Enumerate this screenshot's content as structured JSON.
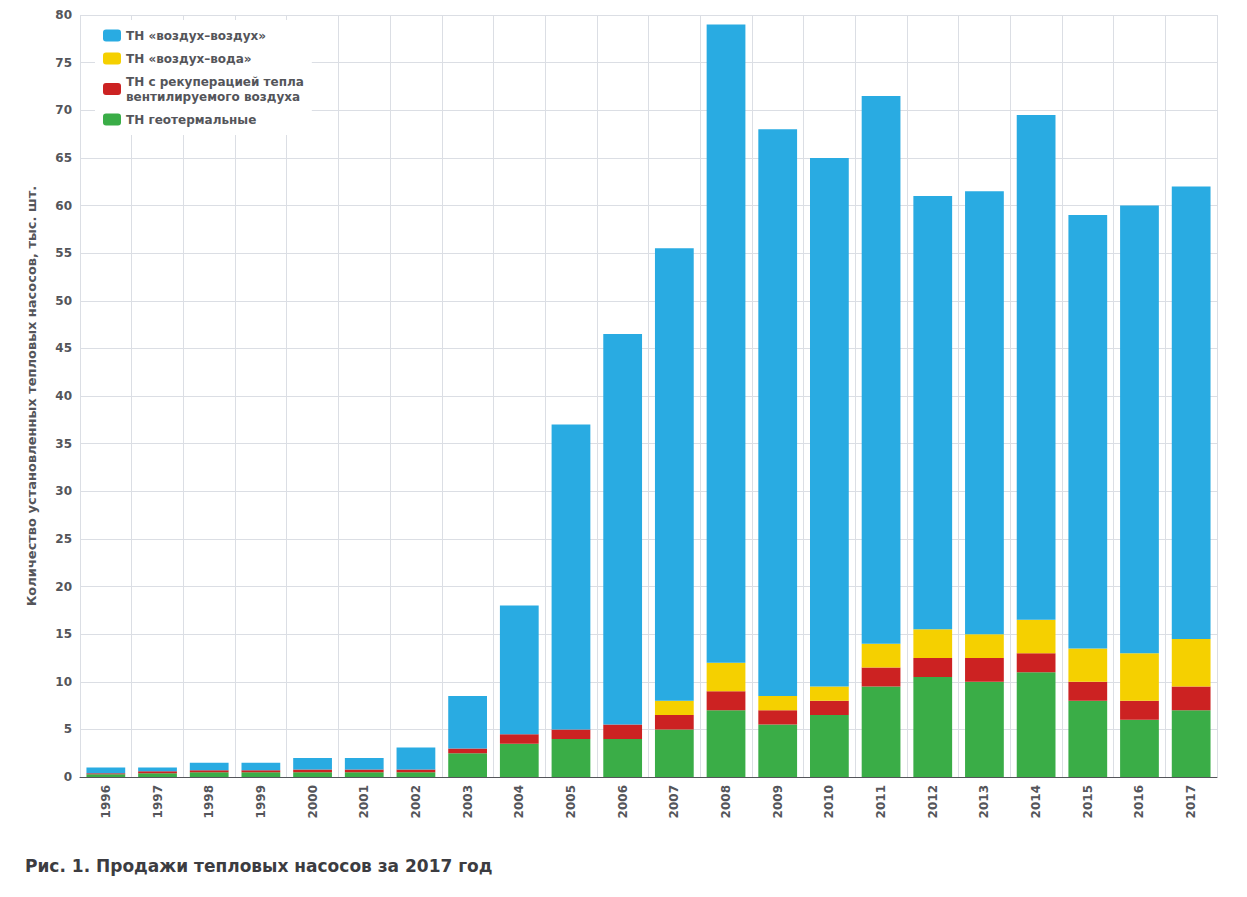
{
  "chart_data": {
    "type": "bar",
    "stacked": true,
    "title": "Рис. 1. Продажи тепловых насосов за 2017 год",
    "ylabel": "Количество установленных тепловых насосов, тыс. шт.",
    "categories": [
      1996,
      1997,
      1998,
      1999,
      2000,
      2001,
      2002,
      2003,
      2004,
      2005,
      2006,
      2007,
      2008,
      2009,
      2010,
      2011,
      2012,
      2013,
      2014,
      2015,
      2016,
      2017
    ],
    "series": [
      {
        "name": "ТН геотермальные",
        "color": "#3AAD47",
        "values": [
          0.3,
          0.4,
          0.5,
          0.5,
          0.5,
          0.5,
          0.5,
          2.5,
          3.5,
          4.0,
          4.0,
          5.0,
          7.0,
          5.5,
          6.5,
          9.5,
          10.5,
          10.0,
          11.0,
          8.0,
          6.0,
          7.0
        ]
      },
      {
        "name": "ТН с рекуперацией тепла\nвентилируемого воздуха",
        "color": "#CC2222",
        "values": [
          0.1,
          0.2,
          0.2,
          0.2,
          0.3,
          0.3,
          0.3,
          0.5,
          1.0,
          1.0,
          1.5,
          1.5,
          2.0,
          1.5,
          1.5,
          2.0,
          2.0,
          2.5,
          2.0,
          2.0,
          2.0,
          2.5
        ]
      },
      {
        "name": "ТН «воздух–вода»",
        "color": "#F5D000",
        "values": [
          0.0,
          0.0,
          0.0,
          0.0,
          0.0,
          0.0,
          0.0,
          0.0,
          0.0,
          0.0,
          0.0,
          1.5,
          3.0,
          1.5,
          1.5,
          2.5,
          3.0,
          2.5,
          3.5,
          3.5,
          5.0,
          5.0
        ]
      },
      {
        "name": "ТН «воздух–воздух»",
        "color": "#29ABE2",
        "values": [
          0.6,
          0.4,
          0.8,
          0.8,
          1.2,
          1.2,
          2.3,
          5.5,
          13.5,
          32.0,
          41.0,
          47.5,
          67.0,
          59.5,
          55.5,
          57.5,
          45.5,
          46.5,
          53.0,
          45.5,
          47.0,
          47.5
        ]
      }
    ],
    "ylim": [
      0,
      80
    ],
    "yticks": [
      0,
      5,
      10,
      15,
      20,
      25,
      30,
      35,
      40,
      45,
      50,
      55,
      60,
      65,
      70,
      75,
      80
    ],
    "grid": true,
    "legend": "upper left"
  }
}
